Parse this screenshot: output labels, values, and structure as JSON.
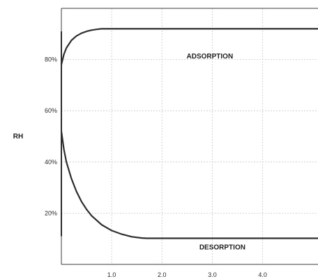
{
  "chart_data": {
    "type": "line",
    "title": "",
    "xlabel": "",
    "ylabel": "RH",
    "xlim": [
      0,
      5.1
    ],
    "ylim": [
      0,
      100
    ],
    "grid": true,
    "x_ticks": [
      1.0,
      2.0,
      3.0,
      4.0
    ],
    "x_tick_labels": [
      "1.0",
      "2.0",
      "3.0",
      "4.0"
    ],
    "y_ticks": [
      20,
      40,
      60,
      80
    ],
    "y_tick_labels": [
      "20%",
      "40%",
      "60%",
      "80%"
    ],
    "colors": {
      "line": "#2e2e2e",
      "grid": "#c8c8c8",
      "frame": "#3a3a3a"
    },
    "series": [
      {
        "x": [
          0,
          0.05,
          0.1,
          0.2,
          0.3,
          0.4,
          0.5,
          0.6,
          0.7,
          0.8,
          1.0,
          2.0,
          3.0,
          4.0,
          5.1
        ],
        "y": [
          78,
          82,
          84.5,
          87.5,
          89.2,
          90.3,
          91.0,
          91.5,
          91.8,
          92,
          92,
          92,
          92,
          92,
          92
        ]
      },
      {
        "x": [
          0,
          0.05,
          0.1,
          0.2,
          0.3,
          0.4,
          0.5,
          0.6,
          0.8,
          1.0,
          1.2,
          1.4,
          1.6,
          1.7,
          2.0,
          3.0,
          4.0,
          5.1
        ],
        "y": [
          52,
          45,
          40,
          33.5,
          28.5,
          24.5,
          21.5,
          19,
          15.5,
          13.2,
          11.8,
          10.8,
          10.3,
          10.2,
          10.2,
          10.2,
          10.2,
          10.2
        ]
      }
    ],
    "annotations": [
      {
        "text": "ADSORPTION",
        "x": 2.95,
        "y": 80.5
      },
      {
        "text": "DESORPTION",
        "x": 3.2,
        "y": 5.8
      }
    ]
  }
}
